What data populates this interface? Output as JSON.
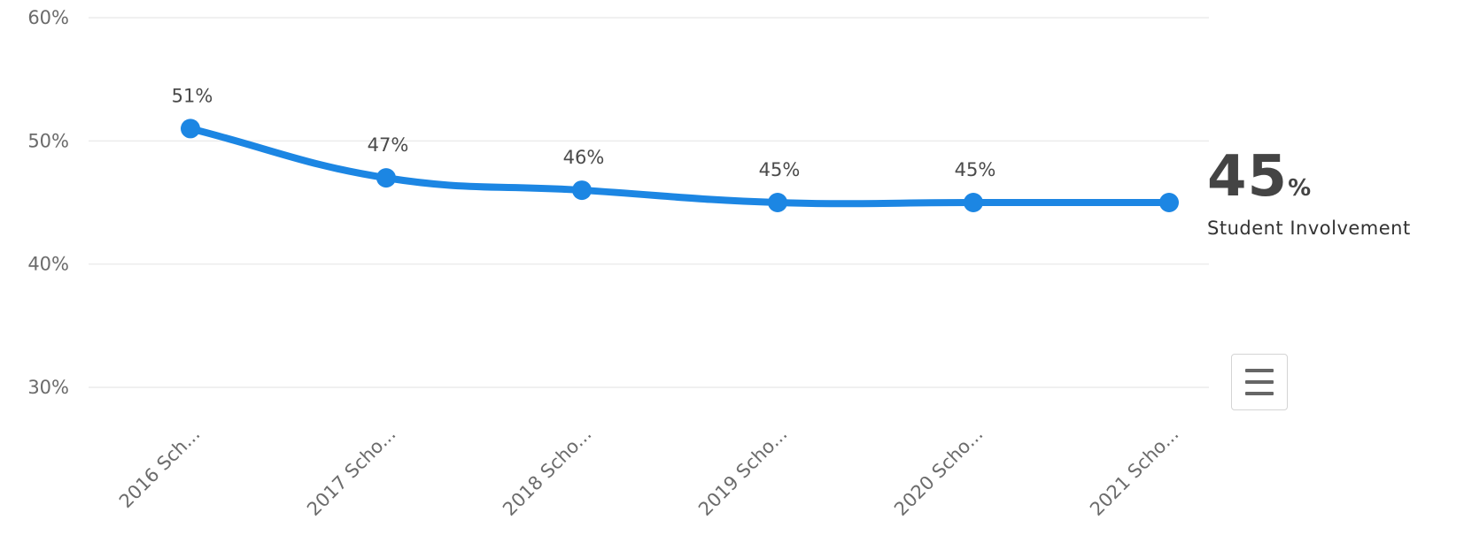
{
  "chart_data": {
    "type": "line",
    "categories": [
      "2016 Sch...",
      "2017 Scho...",
      "2018 Scho...",
      "2019 Scho...",
      "2020 Scho...",
      "2021 Scho..."
    ],
    "values": [
      51,
      47,
      46,
      45,
      45,
      45
    ],
    "data_labels": [
      "51%",
      "47%",
      "46%",
      "45%",
      "45%",
      ""
    ],
    "y_ticks": [
      30,
      40,
      50,
      60
    ],
    "y_tick_labels": [
      "30%",
      "40%",
      "50%",
      "60%"
    ],
    "ylim": [
      30,
      60
    ],
    "grid": true,
    "color": "#1c86e3"
  },
  "summary": {
    "value": "45",
    "unit": "%",
    "label": "Student Involvement"
  },
  "menu": {
    "icon": "hamburger-menu-icon"
  }
}
